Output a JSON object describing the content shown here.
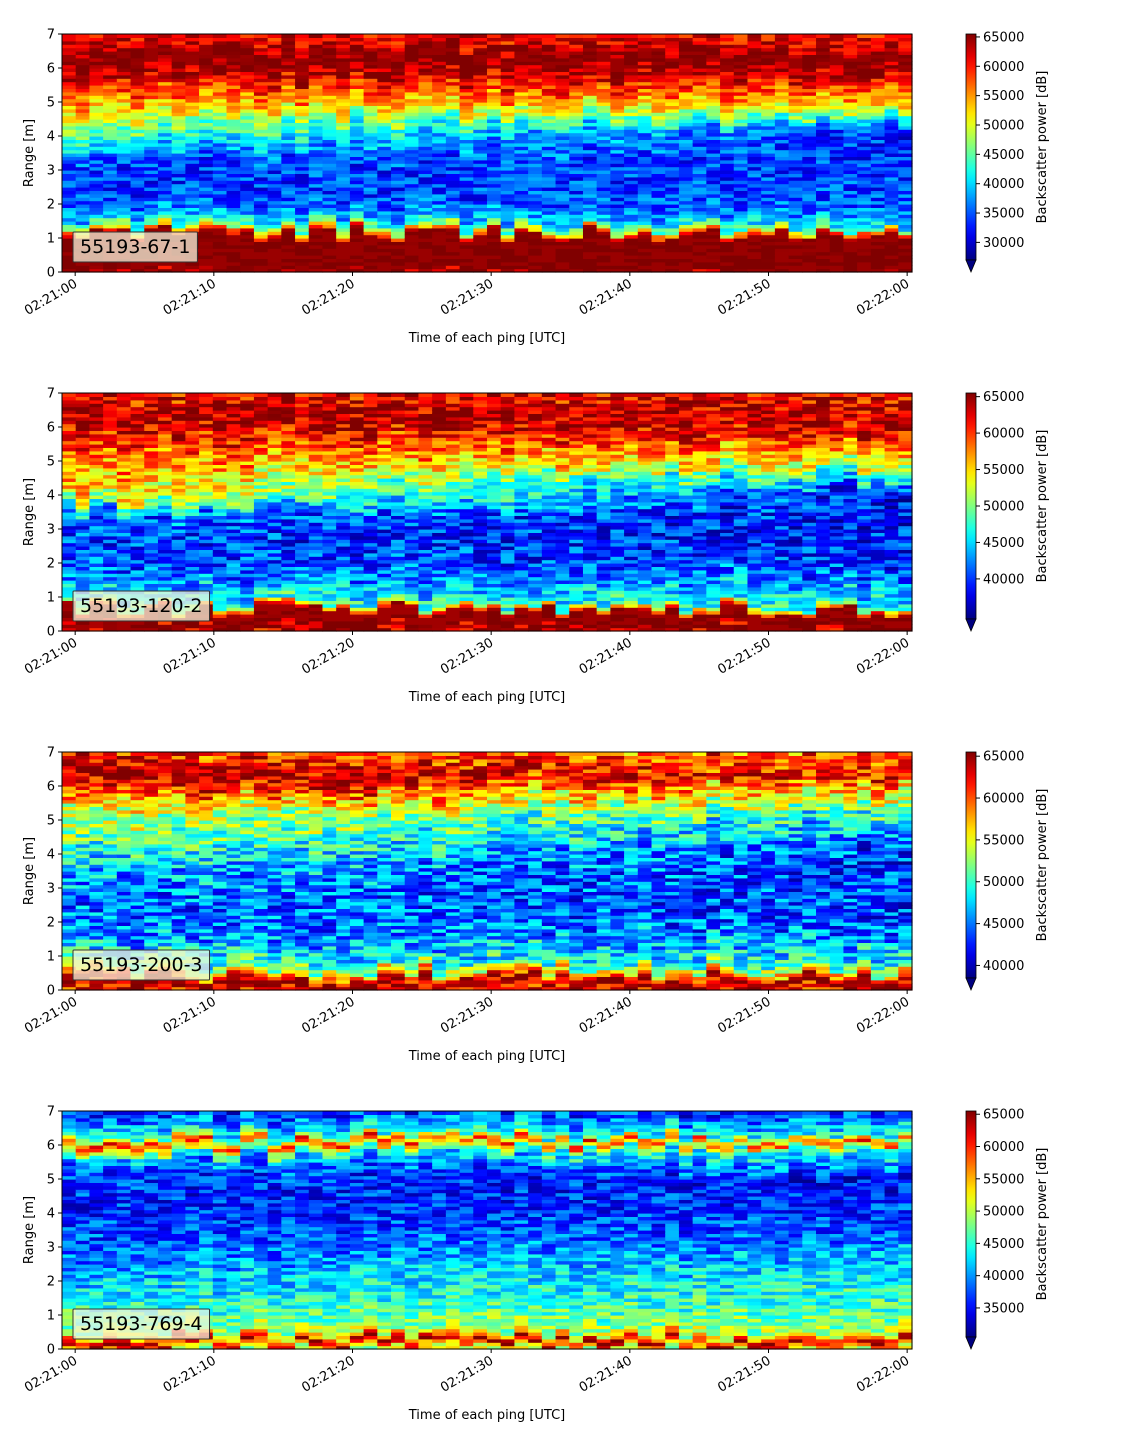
{
  "chart_data": [
    {
      "type": "heatmap",
      "label": "55193-67-1",
      "xlabel": "Time of each ping [UTC]",
      "ylabel": "Range [m]",
      "x_ticks": [
        "02:21:00",
        "02:21:10",
        "02:21:20",
        "02:21:30",
        "02:21:40",
        "02:21:50",
        "02:22:00"
      ],
      "xlim": [
        "02:21:00",
        "02:22:00"
      ],
      "ylim": [
        0,
        7
      ],
      "y_ticks": [
        0,
        1,
        2,
        3,
        4,
        5,
        6,
        7
      ],
      "colorbar": {
        "label": "Backscatter power [dB]",
        "range": [
          27000,
          65500
        ],
        "ticks": [
          30000,
          35000,
          40000,
          45000,
          50000,
          55000,
          60000,
          65000
        ],
        "colormap": "jet",
        "extend": "min"
      },
      "profile": [
        {
          "range": 0.0,
          "value": 64000
        },
        {
          "range": 0.25,
          "value": 65000
        },
        {
          "range": 1.1,
          "value": 65000
        },
        {
          "range": 1.3,
          "value": 50000
        },
        {
          "range": 1.6,
          "value": 39000
        },
        {
          "range": 2.2,
          "value": 34000
        },
        {
          "range": 3.2,
          "value": 34000
        },
        {
          "range": 4.0,
          "value": 44000
        },
        {
          "range": 4.8,
          "value": 53000
        },
        {
          "range": 5.5,
          "value": 60000
        },
        {
          "range": 6.0,
          "value": 65000
        },
        {
          "range": 6.5,
          "value": 64000
        },
        {
          "range": 7.0,
          "value": 61000
        }
      ],
      "end_profile": [
        {
          "range": 0.0,
          "value": 64000
        },
        {
          "range": 0.25,
          "value": 65000
        },
        {
          "range": 1.1,
          "value": 65000
        },
        {
          "range": 1.4,
          "value": 42000
        },
        {
          "range": 2.0,
          "value": 35000
        },
        {
          "range": 4.2,
          "value": 33000
        },
        {
          "range": 4.6,
          "value": 43000
        },
        {
          "range": 5.2,
          "value": 55000
        },
        {
          "range": 5.8,
          "value": 62000
        },
        {
          "range": 6.3,
          "value": 65000
        },
        {
          "range": 7.0,
          "value": 61000
        }
      ]
    },
    {
      "type": "heatmap",
      "label": "55193-120-2",
      "xlabel": "Time of each ping [UTC]",
      "ylabel": "Range [m]",
      "x_ticks": [
        "02:21:00",
        "02:21:10",
        "02:21:20",
        "02:21:30",
        "02:21:40",
        "02:21:50",
        "02:22:00"
      ],
      "xlim": [
        "02:21:00",
        "02:22:00"
      ],
      "ylim": [
        0,
        7
      ],
      "y_ticks": [
        0,
        1,
        2,
        3,
        4,
        5,
        6,
        7
      ],
      "colorbar": {
        "label": "Backscatter power [dB]",
        "range": [
          34500,
          65500
        ],
        "ticks": [
          40000,
          45000,
          50000,
          55000,
          60000,
          65000
        ],
        "colormap": "jet",
        "extend": "min"
      },
      "profile": [
        {
          "range": 0.0,
          "value": 63000
        },
        {
          "range": 0.3,
          "value": 65000
        },
        {
          "range": 0.6,
          "value": 64000
        },
        {
          "range": 0.8,
          "value": 48000
        },
        {
          "range": 1.5,
          "value": 42000
        },
        {
          "range": 2.5,
          "value": 40000
        },
        {
          "range": 3.3,
          "value": 41000
        },
        {
          "range": 4.0,
          "value": 55000
        },
        {
          "range": 5.0,
          "value": 58000
        },
        {
          "range": 5.8,
          "value": 62000
        },
        {
          "range": 6.3,
          "value": 65000
        },
        {
          "range": 7.0,
          "value": 61000
        }
      ],
      "end_profile": [
        {
          "range": 0.0,
          "value": 63000
        },
        {
          "range": 0.3,
          "value": 65000
        },
        {
          "range": 0.6,
          "value": 64000
        },
        {
          "range": 0.8,
          "value": 47000
        },
        {
          "range": 2.0,
          "value": 40000
        },
        {
          "range": 4.2,
          "value": 38000
        },
        {
          "range": 4.8,
          "value": 50000
        },
        {
          "range": 5.5,
          "value": 58000
        },
        {
          "range": 6.2,
          "value": 64000
        },
        {
          "range": 7.0,
          "value": 62000
        }
      ]
    },
    {
      "type": "heatmap",
      "label": "55193-200-3",
      "xlabel": "Time of each ping [UTC]",
      "ylabel": "Range [m]",
      "x_ticks": [
        "02:21:00",
        "02:21:10",
        "02:21:20",
        "02:21:30",
        "02:21:40",
        "02:21:50",
        "02:22:00"
      ],
      "xlim": [
        "02:21:00",
        "02:22:00"
      ],
      "ylim": [
        0,
        7
      ],
      "y_ticks": [
        0,
        1,
        2,
        3,
        4,
        5,
        6,
        7
      ],
      "colorbar": {
        "label": "Backscatter power [dB]",
        "range": [
          38500,
          65500
        ],
        "ticks": [
          40000,
          45000,
          50000,
          55000,
          60000,
          65000
        ],
        "colormap": "jet",
        "extend": "min"
      },
      "profile": [
        {
          "range": 0.0,
          "value": 62000
        },
        {
          "range": 0.3,
          "value": 65000
        },
        {
          "range": 0.5,
          "value": 58000
        },
        {
          "range": 0.8,
          "value": 50000
        },
        {
          "range": 1.5,
          "value": 46000
        },
        {
          "range": 2.5,
          "value": 44500
        },
        {
          "range": 3.5,
          "value": 47000
        },
        {
          "range": 4.5,
          "value": 52000
        },
        {
          "range": 5.3,
          "value": 55000
        },
        {
          "range": 6.0,
          "value": 63000
        },
        {
          "range": 6.3,
          "value": 65000
        },
        {
          "range": 7.0,
          "value": 61000
        }
      ],
      "end_profile": [
        {
          "range": 0.0,
          "value": 62000
        },
        {
          "range": 0.3,
          "value": 65000
        },
        {
          "range": 0.5,
          "value": 57000
        },
        {
          "range": 0.8,
          "value": 49000
        },
        {
          "range": 2.0,
          "value": 44000
        },
        {
          "range": 4.0,
          "value": 43000
        },
        {
          "range": 5.0,
          "value": 48000
        },
        {
          "range": 5.8,
          "value": 55000
        },
        {
          "range": 6.4,
          "value": 62000
        },
        {
          "range": 7.0,
          "value": 58000
        }
      ]
    },
    {
      "type": "heatmap",
      "label": "55193-769-4",
      "xlabel": "Time of each ping [UTC]",
      "ylabel": "Range [m]",
      "x_ticks": [
        "02:21:00",
        "02:21:10",
        "02:21:20",
        "02:21:30",
        "02:21:40",
        "02:21:50",
        "02:22:00"
      ],
      "xlim": [
        "02:21:00",
        "02:22:00"
      ],
      "ylim": [
        0,
        7
      ],
      "y_ticks": [
        0,
        1,
        2,
        3,
        4,
        5,
        6,
        7
      ],
      "colorbar": {
        "label": "Backscatter power [dB]",
        "range": [
          30500,
          65500
        ],
        "ticks": [
          35000,
          40000,
          45000,
          50000,
          55000,
          60000,
          65000
        ],
        "colormap": "jet",
        "extend": "min"
      },
      "profile": [
        {
          "range": 0.0,
          "value": 50000
        },
        {
          "range": 0.2,
          "value": 65000
        },
        {
          "range": 0.3,
          "value": 60000
        },
        {
          "range": 0.5,
          "value": 50000
        },
        {
          "range": 1.0,
          "value": 46000
        },
        {
          "range": 2.0,
          "value": 42000
        },
        {
          "range": 3.0,
          "value": 38000
        },
        {
          "range": 4.5,
          "value": 36000
        },
        {
          "range": 5.5,
          "value": 38000
        },
        {
          "range": 5.9,
          "value": 50000
        },
        {
          "range": 6.1,
          "value": 62000
        },
        {
          "range": 6.3,
          "value": 45000
        },
        {
          "range": 7.0,
          "value": 36000
        }
      ],
      "end_profile": [
        {
          "range": 0.0,
          "value": 50000
        },
        {
          "range": 0.2,
          "value": 65000
        },
        {
          "range": 0.3,
          "value": 60000
        },
        {
          "range": 0.5,
          "value": 50000
        },
        {
          "range": 1.0,
          "value": 47000
        },
        {
          "range": 2.0,
          "value": 44000
        },
        {
          "range": 3.5,
          "value": 38000
        },
        {
          "range": 5.0,
          "value": 35000
        },
        {
          "range": 5.9,
          "value": 45000
        },
        {
          "range": 6.1,
          "value": 60000
        },
        {
          "range": 6.3,
          "value": 45000
        },
        {
          "range": 7.0,
          "value": 36000
        }
      ]
    }
  ]
}
